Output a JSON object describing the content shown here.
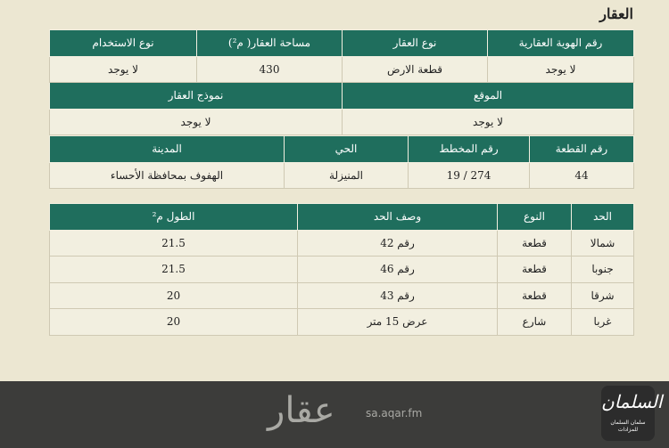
{
  "section_title": "العقار",
  "property": {
    "headers1": [
      "رقم الهوية العقارية",
      "نوع العقار",
      "مساحة العقار( م²)",
      "نوع الاستخدام"
    ],
    "values1": [
      "لا يوجد",
      "قطعة الارض",
      "430",
      "لا يوجد"
    ],
    "headers2": [
      "الموقع",
      "نموذج العقار"
    ],
    "values2": [
      "لا يوجد",
      "لا يوجد"
    ],
    "headers3": [
      "رقم القطعة",
      "رقم المخطط",
      "الحي",
      "المدينة"
    ],
    "values3": [
      "44",
      "274 / 19",
      "المنيزلة",
      "الهفوف بمحافظة الأحساء"
    ]
  },
  "boundaries": {
    "headers": [
      "الحد",
      "النوع",
      "وصف الحد",
      "الطول م²"
    ],
    "rows": [
      [
        "شمالا",
        "قطعة",
        "رقم 42",
        "21.5"
      ],
      [
        "جنوبا",
        "قطعة",
        "رقم 46",
        "21.5"
      ],
      [
        "شرقا",
        "قطعة",
        "رقم 43",
        "20"
      ],
      [
        "غربا",
        "شارع",
        "عرض 15 متر",
        "20"
      ]
    ]
  },
  "watermark": {
    "logo": "عقار",
    "url": "sa.aqar.fm"
  },
  "brand": {
    "calligraphy": "السلمان",
    "name": "سلمان السلمان للمزادات"
  },
  "colors": {
    "header": "#1f6e5d",
    "background": "#ece7d2",
    "footer": "#3c3c3a"
  }
}
